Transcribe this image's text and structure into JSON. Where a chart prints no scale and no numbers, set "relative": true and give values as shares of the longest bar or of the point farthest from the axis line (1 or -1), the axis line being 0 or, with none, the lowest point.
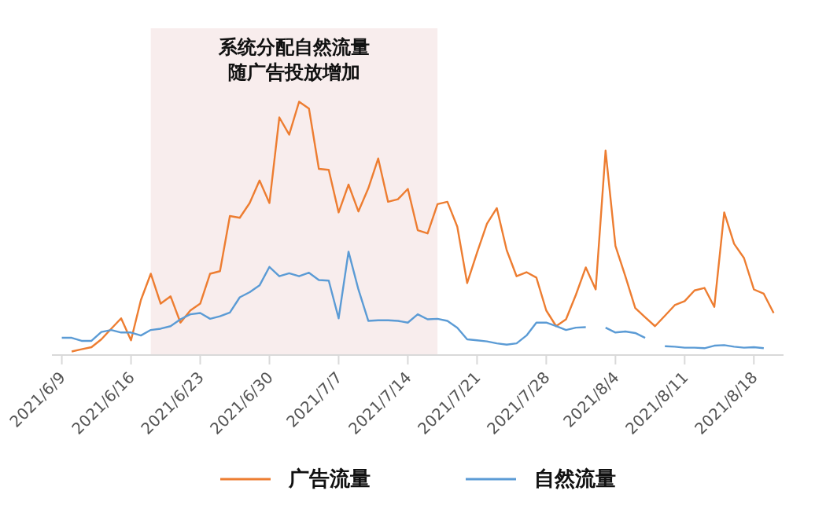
{
  "chart_data": {
    "type": "line",
    "relative": true,
    "x": [
      "2021-06-09",
      "2021-06-10",
      "2021-06-11",
      "2021-06-12",
      "2021-06-13",
      "2021-06-14",
      "2021-06-15",
      "2021-06-16",
      "2021-06-17",
      "2021-06-18",
      "2021-06-19",
      "2021-06-20",
      "2021-06-21",
      "2021-06-22",
      "2021-06-23",
      "2021-06-24",
      "2021-06-25",
      "2021-06-26",
      "2021-06-27",
      "2021-06-28",
      "2021-06-29",
      "2021-06-30",
      "2021-07-01",
      "2021-07-02",
      "2021-07-03",
      "2021-07-04",
      "2021-07-05",
      "2021-07-06",
      "2021-07-07",
      "2021-07-08",
      "2021-07-09",
      "2021-07-10",
      "2021-07-11",
      "2021-07-12",
      "2021-07-13",
      "2021-07-14",
      "2021-07-15",
      "2021-07-16",
      "2021-07-17",
      "2021-07-18",
      "2021-07-19",
      "2021-07-20",
      "2021-07-21",
      "2021-07-22",
      "2021-07-23",
      "2021-07-24",
      "2021-07-25",
      "2021-07-26",
      "2021-07-27",
      "2021-07-28",
      "2021-07-29",
      "2021-07-30",
      "2021-07-31",
      "2021-08-01",
      "2021-08-02",
      "2021-08-03",
      "2021-08-04",
      "2021-08-05",
      "2021-08-06",
      "2021-08-07",
      "2021-08-08",
      "2021-08-09",
      "2021-08-10",
      "2021-08-11",
      "2021-08-12",
      "2021-08-13",
      "2021-08-14",
      "2021-08-15",
      "2021-08-16",
      "2021-08-17",
      "2021-08-18",
      "2021-08-19",
      "2021-08-20"
    ],
    "series": [
      {
        "name": "广告流量",
        "color": "#ed7d31",
        "values": [
          null,
          0.014,
          0.023,
          0.031,
          0.062,
          0.104,
          0.145,
          0.058,
          0.217,
          0.321,
          0.203,
          0.232,
          0.128,
          0.176,
          0.203,
          0.321,
          0.331,
          0.549,
          0.542,
          0.6,
          0.689,
          0.6,
          0.938,
          0.87,
          1,
          0.973,
          0.735,
          0.731,
          0.563,
          0.673,
          0.567,
          0.658,
          0.776,
          0.605,
          0.615,
          0.656,
          0.493,
          0.48,
          0.596,
          0.605,
          0.507,
          0.284,
          0.404,
          0.518,
          0.58,
          0.414,
          0.311,
          0.327,
          0.306,
          0.176,
          0.114,
          0.141,
          0.238,
          0.346,
          0.259,
          0.807,
          0.431,
          0.311,
          0.186,
          0.149,
          0.114,
          0.155,
          0.197,
          0.213,
          0.255,
          0.265,
          0.19,
          0.563,
          0.439,
          0.383,
          0.259,
          0.242,
          0.166
        ]
      },
      {
        "name": "自然流量",
        "color": "#5b9bd5",
        "values": [
          0.068,
          0.068,
          0.056,
          0.056,
          0.091,
          0.099,
          0.089,
          0.089,
          0.077,
          0.099,
          0.104,
          0.114,
          0.141,
          0.161,
          0.166,
          0.143,
          0.153,
          0.168,
          0.228,
          0.248,
          0.275,
          0.348,
          0.311,
          0.323,
          0.311,
          0.325,
          0.296,
          0.294,
          0.145,
          0.408,
          0.259,
          0.135,
          0.137,
          0.137,
          0.135,
          0.128,
          0.161,
          0.141,
          0.143,
          0.135,
          0.108,
          0.062,
          0.058,
          0.054,
          0.046,
          0.041,
          0.046,
          0.077,
          0.128,
          0.128,
          0.114,
          0.099,
          0.108,
          0.11,
          null,
          0.108,
          0.089,
          0.093,
          0.087,
          0.068,
          null,
          0.035,
          0.033,
          0.029,
          0.029,
          0.027,
          0.037,
          0.039,
          0.033,
          0.029,
          0.031,
          0.027,
          null
        ]
      }
    ],
    "xlim": [
      "2021-06-08",
      "2021-08-21"
    ],
    "xticks": [
      {
        "value": "2021-06-09",
        "label": "2021/6/9"
      },
      {
        "value": "2021-06-16",
        "label": "2021/6/16"
      },
      {
        "value": "2021-06-23",
        "label": "2021/6/23"
      },
      {
        "value": "2021-06-30",
        "label": "2021/6/30"
      },
      {
        "value": "2021-07-07",
        "label": "2021/7/7"
      },
      {
        "value": "2021-07-14",
        "label": "2021/7/14"
      },
      {
        "value": "2021-07-21",
        "label": "2021/7/21"
      },
      {
        "value": "2021-07-28",
        "label": "2021/7/28"
      },
      {
        "value": "2021-08-04",
        "label": "2021/8/4"
      },
      {
        "value": "2021-08-11",
        "label": "2021/8/11"
      },
      {
        "value": "2021-08-18",
        "label": "2021/8/18"
      }
    ],
    "bands": [
      {
        "axis": "x",
        "from": "2021-06-18",
        "to": "2021-07-17",
        "label": "系统分配自然流量随广告投放增加",
        "color": "#f8eded"
      }
    ],
    "legend": "bottom",
    "marker": "none",
    "line_style": "solid",
    "grid": false
  }
}
